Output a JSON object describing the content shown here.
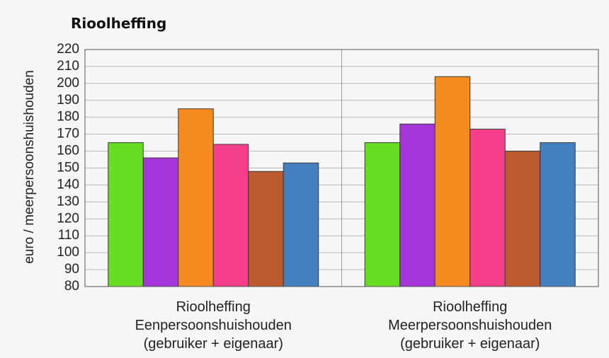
{
  "chart_data": {
    "type": "bar",
    "title": "Rioolheffing",
    "ylabel": "euro / meerpersoonshuishouden",
    "ylim": [
      80,
      220
    ],
    "yticks": [
      80,
      90,
      100,
      110,
      120,
      130,
      140,
      150,
      160,
      170,
      180,
      190,
      200,
      210,
      220
    ],
    "grid": true,
    "legend": "none",
    "categories": [
      [
        "Rioolheffing",
        "Eenpersoonshuishouden",
        "(gebruiker + eigenaar)"
      ],
      [
        "Rioolheffing",
        "Meerpersoonshuishouden",
        "(gebruiker + eigenaar)"
      ]
    ],
    "series": [
      {
        "color": "#66dd22",
        "values": [
          165,
          165
        ]
      },
      {
        "color": "#a435d9",
        "values": [
          156,
          176
        ]
      },
      {
        "color": "#f58a1f",
        "values": [
          185,
          204
        ]
      },
      {
        "color": "#f63f8b",
        "values": [
          164,
          173
        ]
      },
      {
        "color": "#bb5a2e",
        "values": [
          148,
          160
        ]
      },
      {
        "color": "#4480c0",
        "values": [
          153,
          165
        ]
      }
    ]
  }
}
